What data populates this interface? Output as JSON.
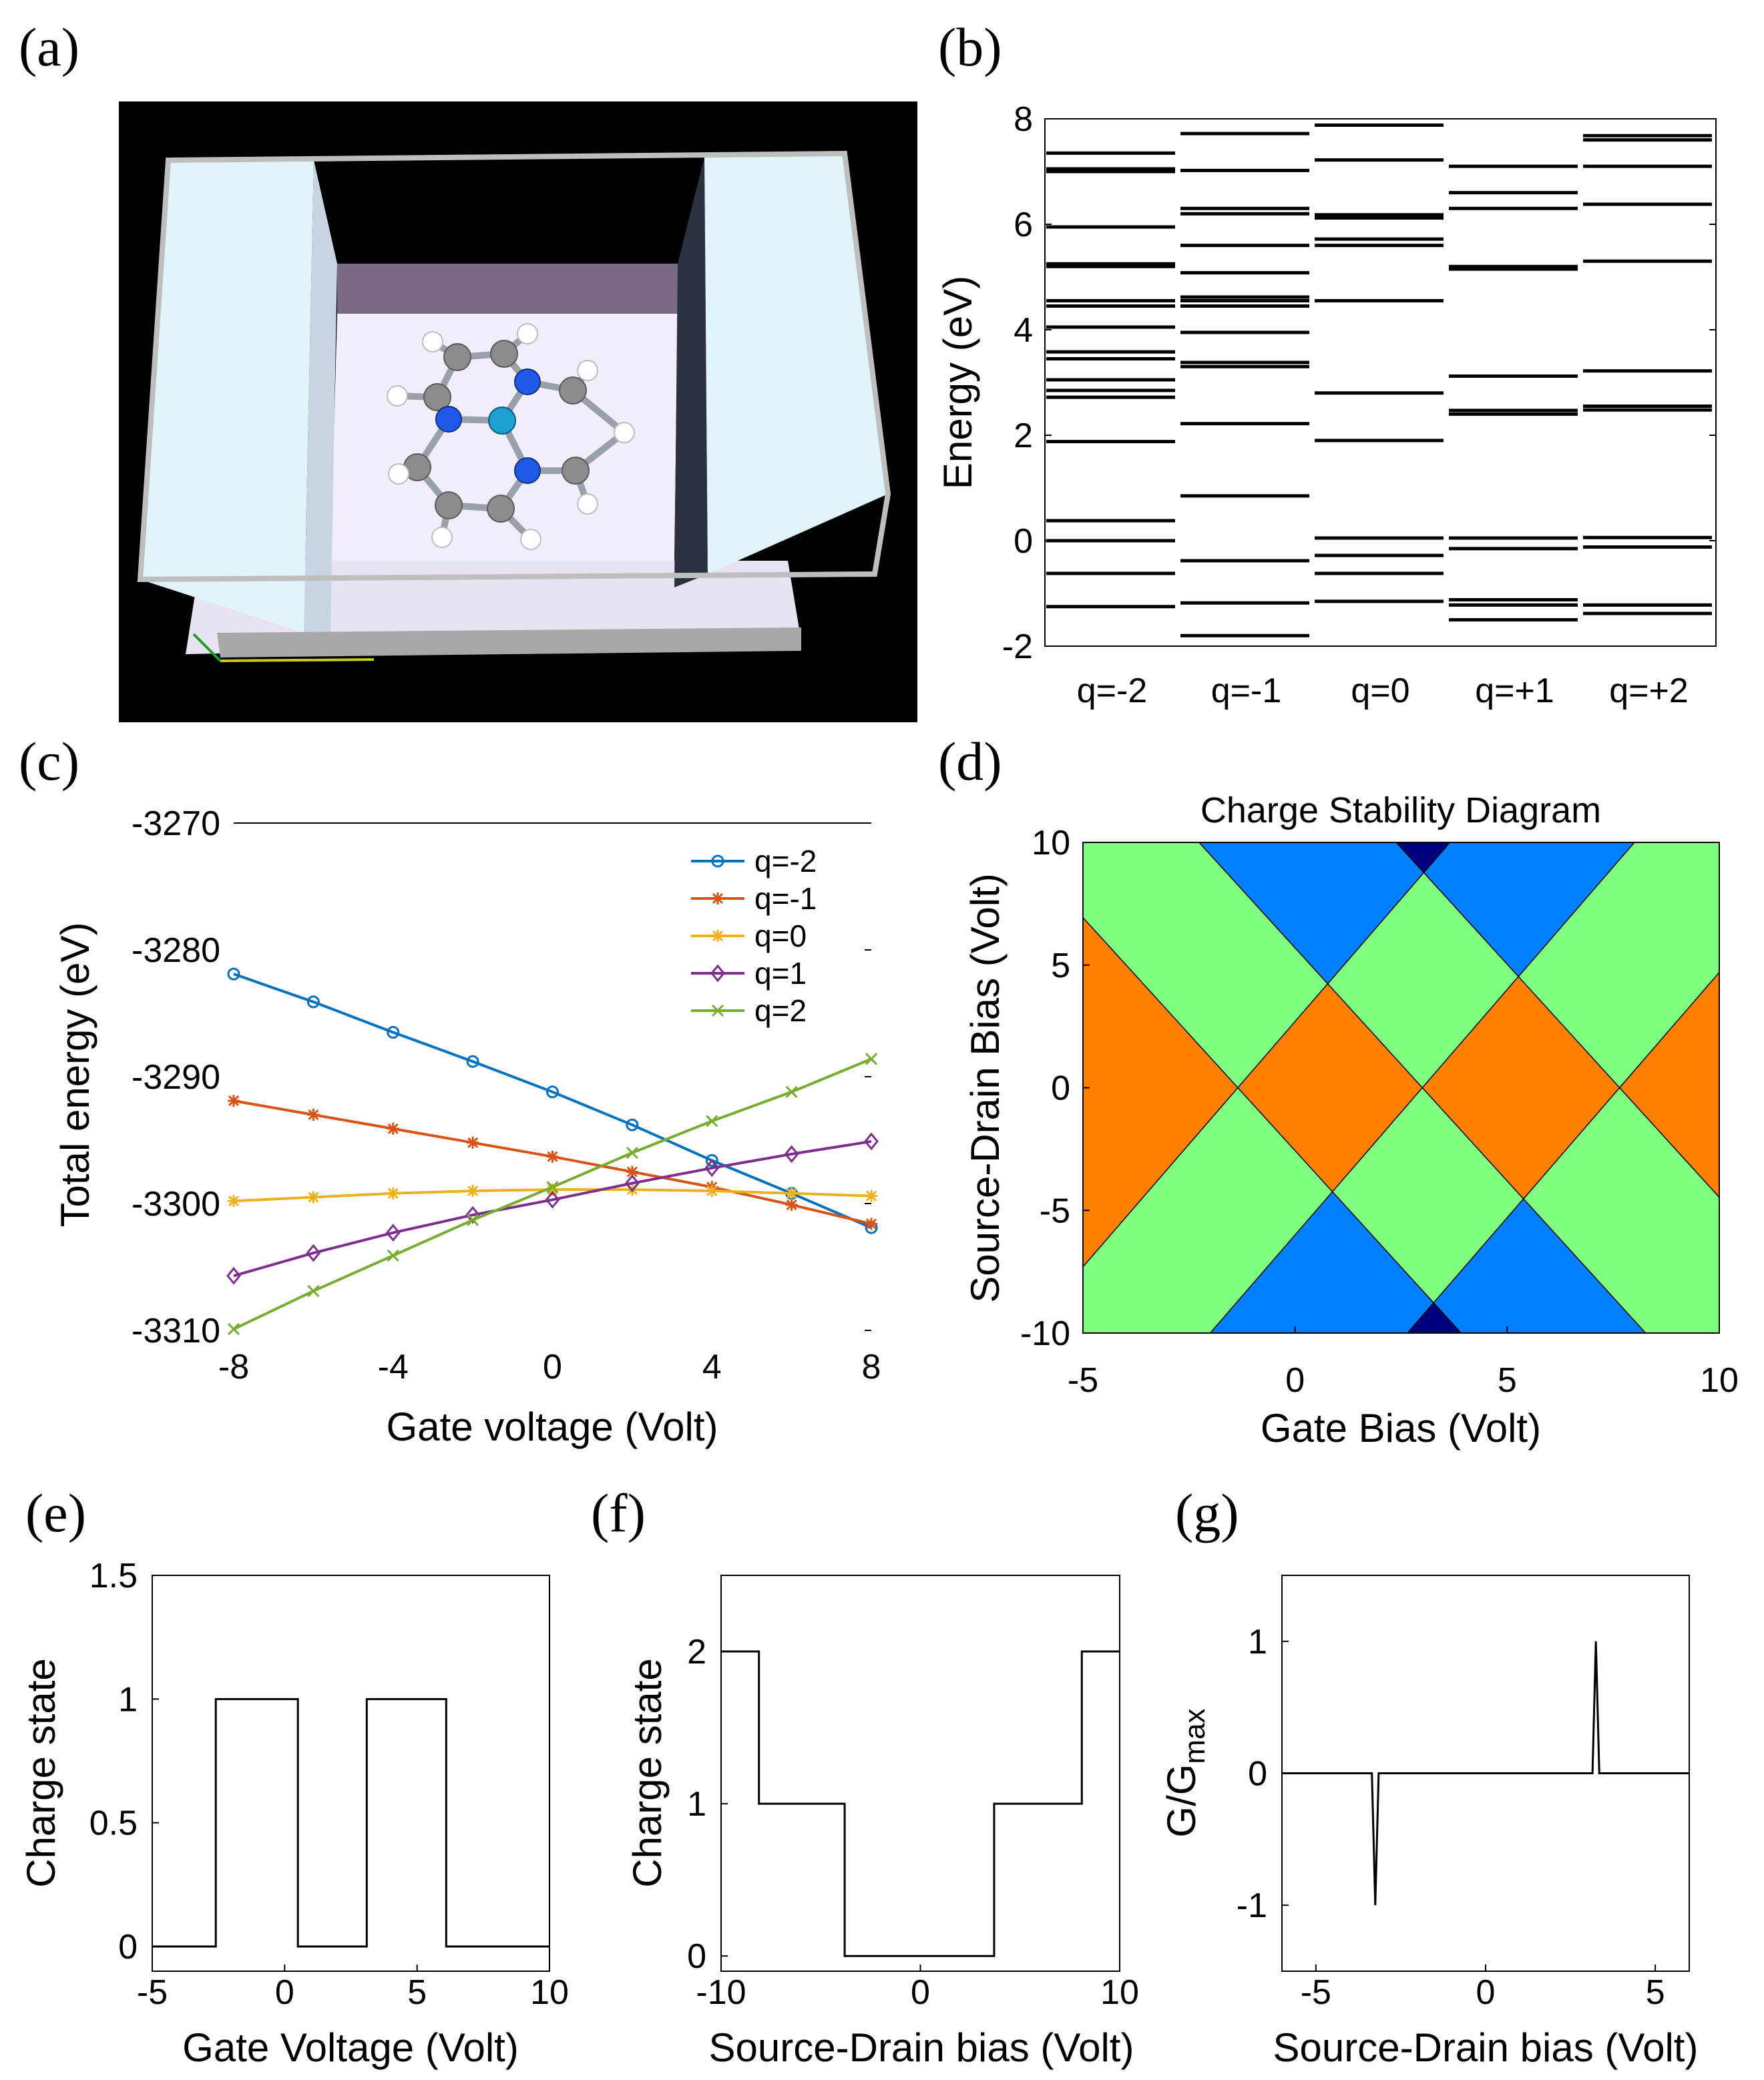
{
  "panel_labels": [
    "(a)",
    "(b)",
    "(c)",
    "(d)",
    "(e)",
    "(f)",
    "(g)"
  ],
  "colors": {
    "q_minus2": "#0072BD",
    "q_minus1": "#D95319",
    "q_0": "#EDB120",
    "q_1": "#7E2F8E",
    "q_2": "#77AC30",
    "stab_dark_blue": "#00007F",
    "stab_blue": "#0080FF",
    "stab_green": "#80FF80",
    "stab_orange": "#FF8000",
    "stab_maroon": "#7F0000",
    "render_bg": "#000000",
    "electrode": "#E1F4F8",
    "surface": "#F2EDFA",
    "atom_carbon": "#8C8C8C",
    "atom_nitrogen": "#1E5AE6",
    "atom_metal": "#1EA0D2",
    "atom_hydrogen": "#FFFFFF"
  },
  "chart_data": [
    {
      "panel": "a",
      "type": "other",
      "description_icon": "molecular-junction-render"
    },
    {
      "panel": "b",
      "type": "table",
      "ylabel": "Energy (eV)",
      "ylim": [
        -2,
        8
      ],
      "yticks": [
        -2,
        0,
        2,
        4,
        6,
        8
      ],
      "categories": [
        "q=-2",
        "q=-1",
        "q=0",
        "q=+1",
        "q=+2"
      ],
      "levels": [
        [
          -1.25,
          -0.62,
          0.0,
          0.38,
          1.88,
          2.72,
          2.85,
          3.05,
          3.45,
          3.58,
          4.05,
          4.45,
          4.55,
          5.2,
          5.25,
          5.95,
          7.0,
          7.05,
          7.35
        ],
        [
          -1.8,
          -1.18,
          -0.38,
          0.85,
          2.22,
          3.3,
          3.38,
          3.95,
          4.45,
          4.55,
          4.62,
          5.08,
          5.6,
          6.2,
          6.3,
          7.02,
          7.72
        ],
        [
          -1.15,
          -0.62,
          -0.28,
          0.05,
          1.9,
          2.8,
          4.55,
          5.6,
          5.72,
          6.12,
          6.18,
          7.22,
          7.88
        ],
        [
          -1.5,
          -1.22,
          -1.12,
          -0.15,
          0.05,
          2.4,
          2.47,
          3.12,
          5.15,
          5.2,
          6.3,
          6.6,
          7.1
        ],
        [
          -1.38,
          -1.22,
          -0.12,
          0.06,
          2.48,
          2.55,
          3.22,
          5.3,
          6.38,
          7.1,
          7.6,
          7.68
        ]
      ]
    },
    {
      "panel": "c",
      "type": "line",
      "xlabel": "Gate voltage (Volt)",
      "ylabel": "Total energy (eV)",
      "xlim": [
        -8,
        8
      ],
      "ylim": [
        -3310,
        -3270
      ],
      "xticks": [
        -8,
        -4,
        0,
        4,
        8
      ],
      "yticks": [
        -3270,
        -3280,
        -3290,
        -3300,
        -3310
      ],
      "x": [
        -8,
        -6,
        -4,
        -2,
        0,
        2,
        4,
        6,
        8
      ],
      "series": [
        {
          "name": "q=-2",
          "marker": "o",
          "values": [
            -3281.9,
            -3284.1,
            -3286.5,
            -3288.8,
            -3291.2,
            -3293.8,
            -3296.6,
            -3299.2,
            -3301.9
          ]
        },
        {
          "name": "q=-1",
          "marker": "*",
          "values": [
            -3291.9,
            -3293.0,
            -3294.1,
            -3295.2,
            -3296.3,
            -3297.5,
            -3298.7,
            -3300.1,
            -3301.6
          ]
        },
        {
          "name": "q=0",
          "marker": "*",
          "values": [
            -3299.8,
            -3299.5,
            -3299.2,
            -3299.0,
            -3298.9,
            -3298.9,
            -3299.0,
            -3299.2,
            -3299.4
          ]
        },
        {
          "name": "q=1",
          "marker": "d",
          "values": [
            -3305.7,
            -3303.9,
            -3302.3,
            -3300.9,
            -3299.7,
            -3298.4,
            -3297.2,
            -3296.1,
            -3295.1
          ]
        },
        {
          "name": "q=2",
          "marker": "x",
          "values": [
            -3309.9,
            -3306.9,
            -3304.1,
            -3301.3,
            -3298.7,
            -3296.0,
            -3293.5,
            -3291.2,
            -3288.6
          ]
        }
      ]
    },
    {
      "panel": "d",
      "type": "heatmap",
      "title": "Charge Stability Diagram",
      "xlabel": "Gate Bias (Volt)",
      "ylabel": "Source-Drain Bias (Volt)",
      "xlim": [
        -5,
        10
      ],
      "ylim": [
        -10,
        10
      ],
      "xticks": [
        -5,
        0,
        5,
        10
      ],
      "yticks": [
        -10,
        -5,
        0,
        5,
        10
      ],
      "degeneracy_points": [
        -1.35,
        3.0,
        7.65
      ],
      "line_slopes": [
        2.0,
        -1.9
      ],
      "charging_level_colors": [
        "#00007F",
        "#0080FF",
        "#80FF80",
        "#FF8000",
        "#7F0000"
      ]
    },
    {
      "panel": "e",
      "type": "line",
      "xlabel": "Gate Voltage (Volt)",
      "ylabel": "Charge state",
      "xlim": [
        -5,
        10
      ],
      "ylim": [
        -0.1,
        1.5
      ],
      "xticks": [
        -5,
        0,
        5,
        10
      ],
      "yticks": [
        0,
        0.5,
        1,
        1.5
      ],
      "x": [
        -5,
        -2.6,
        -2.6,
        0.5,
        0.5,
        3.1,
        3.1,
        6.1,
        6.1,
        10
      ],
      "values": [
        0,
        0,
        1,
        1,
        0,
        0,
        1,
        1,
        0,
        0
      ]
    },
    {
      "panel": "f",
      "type": "line",
      "xlabel": "Source-Drain bias (Volt)",
      "ylabel": "Charge state",
      "xlim": [
        -10,
        10
      ],
      "ylim": [
        -0.1,
        2.5
      ],
      "xticks": [
        -10,
        0,
        10
      ],
      "yticks": [
        0,
        1,
        2
      ],
      "x": [
        -10,
        -8.1,
        -8.1,
        -3.8,
        -3.8,
        3.7,
        3.7,
        8.1,
        8.1,
        10
      ],
      "values": [
        2,
        2,
        1,
        1,
        0,
        0,
        1,
        1,
        2,
        2
      ]
    },
    {
      "panel": "g",
      "type": "line",
      "xlabel": "Source-Drain bias (Volt)",
      "ylabel": "G/G",
      "ylabel_sub": "max",
      "xlim": [
        -6,
        6
      ],
      "ylim": [
        -1.5,
        1.5
      ],
      "xticks": [
        -5,
        0,
        5
      ],
      "yticks": [
        -1,
        0,
        1
      ],
      "x": [
        -6,
        -3.35,
        -3.25,
        -3.15,
        3.15,
        3.25,
        3.35,
        6
      ],
      "values": [
        0,
        0,
        -1,
        0,
        0,
        1,
        0,
        0
      ]
    }
  ]
}
